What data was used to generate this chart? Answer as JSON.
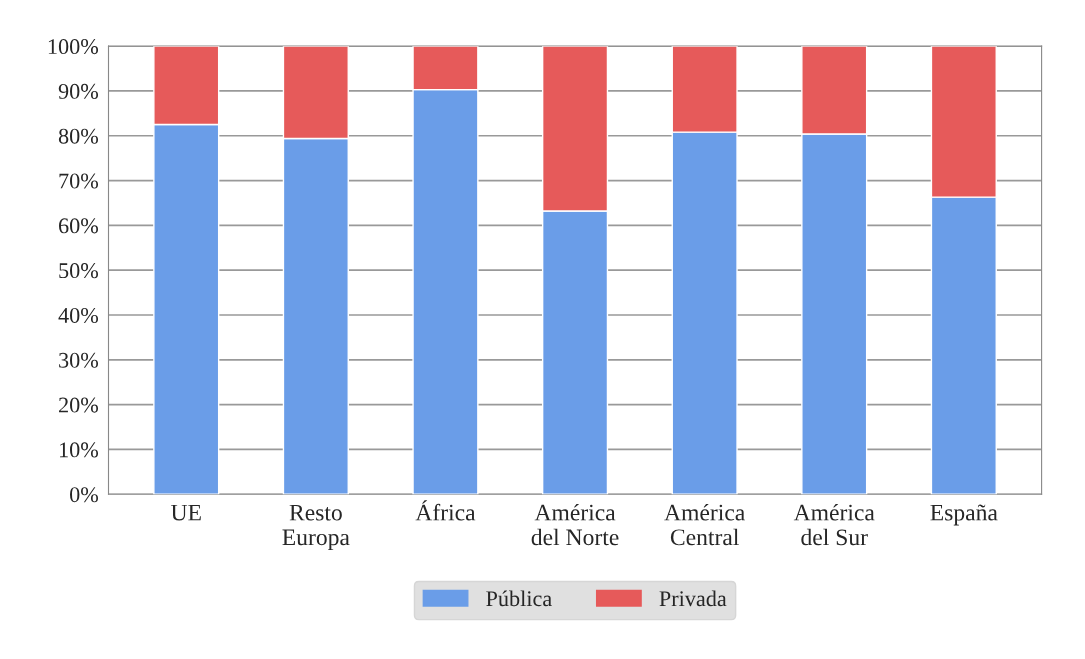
{
  "chart_data": {
    "type": "bar",
    "stacked": true,
    "categories": [
      "UE",
      "Resto\nEuropa",
      "África",
      "América\ndel Norte",
      "América\nCentral",
      "América\ndel Sur",
      "España"
    ],
    "series": [
      {
        "name": "Pública",
        "color": "#6a9de8",
        "values": [
          82.5,
          79.4,
          90.3,
          63.2,
          80.8,
          80.4,
          66.3
        ]
      },
      {
        "name": "Privada",
        "color": "#e65a5a",
        "values": [
          17.5,
          20.6,
          9.7,
          36.8,
          19.2,
          19.6,
          33.7
        ]
      }
    ],
    "ylim": [
      0,
      100
    ],
    "yticks": [
      {
        "value": 0,
        "label": "0%"
      },
      {
        "value": 10,
        "label": "10%"
      },
      {
        "value": 20,
        "label": "20%"
      },
      {
        "value": 30,
        "label": "30%"
      },
      {
        "value": 40,
        "label": "40%"
      },
      {
        "value": 50,
        "label": "50%"
      },
      {
        "value": 60,
        "label": "60%"
      },
      {
        "value": 70,
        "label": "70%"
      },
      {
        "value": 80,
        "label": "80%"
      },
      {
        "value": 90,
        "label": "90%"
      },
      {
        "value": 100,
        "label": "100%"
      }
    ],
    "grid": "y",
    "legend": "bottom"
  }
}
